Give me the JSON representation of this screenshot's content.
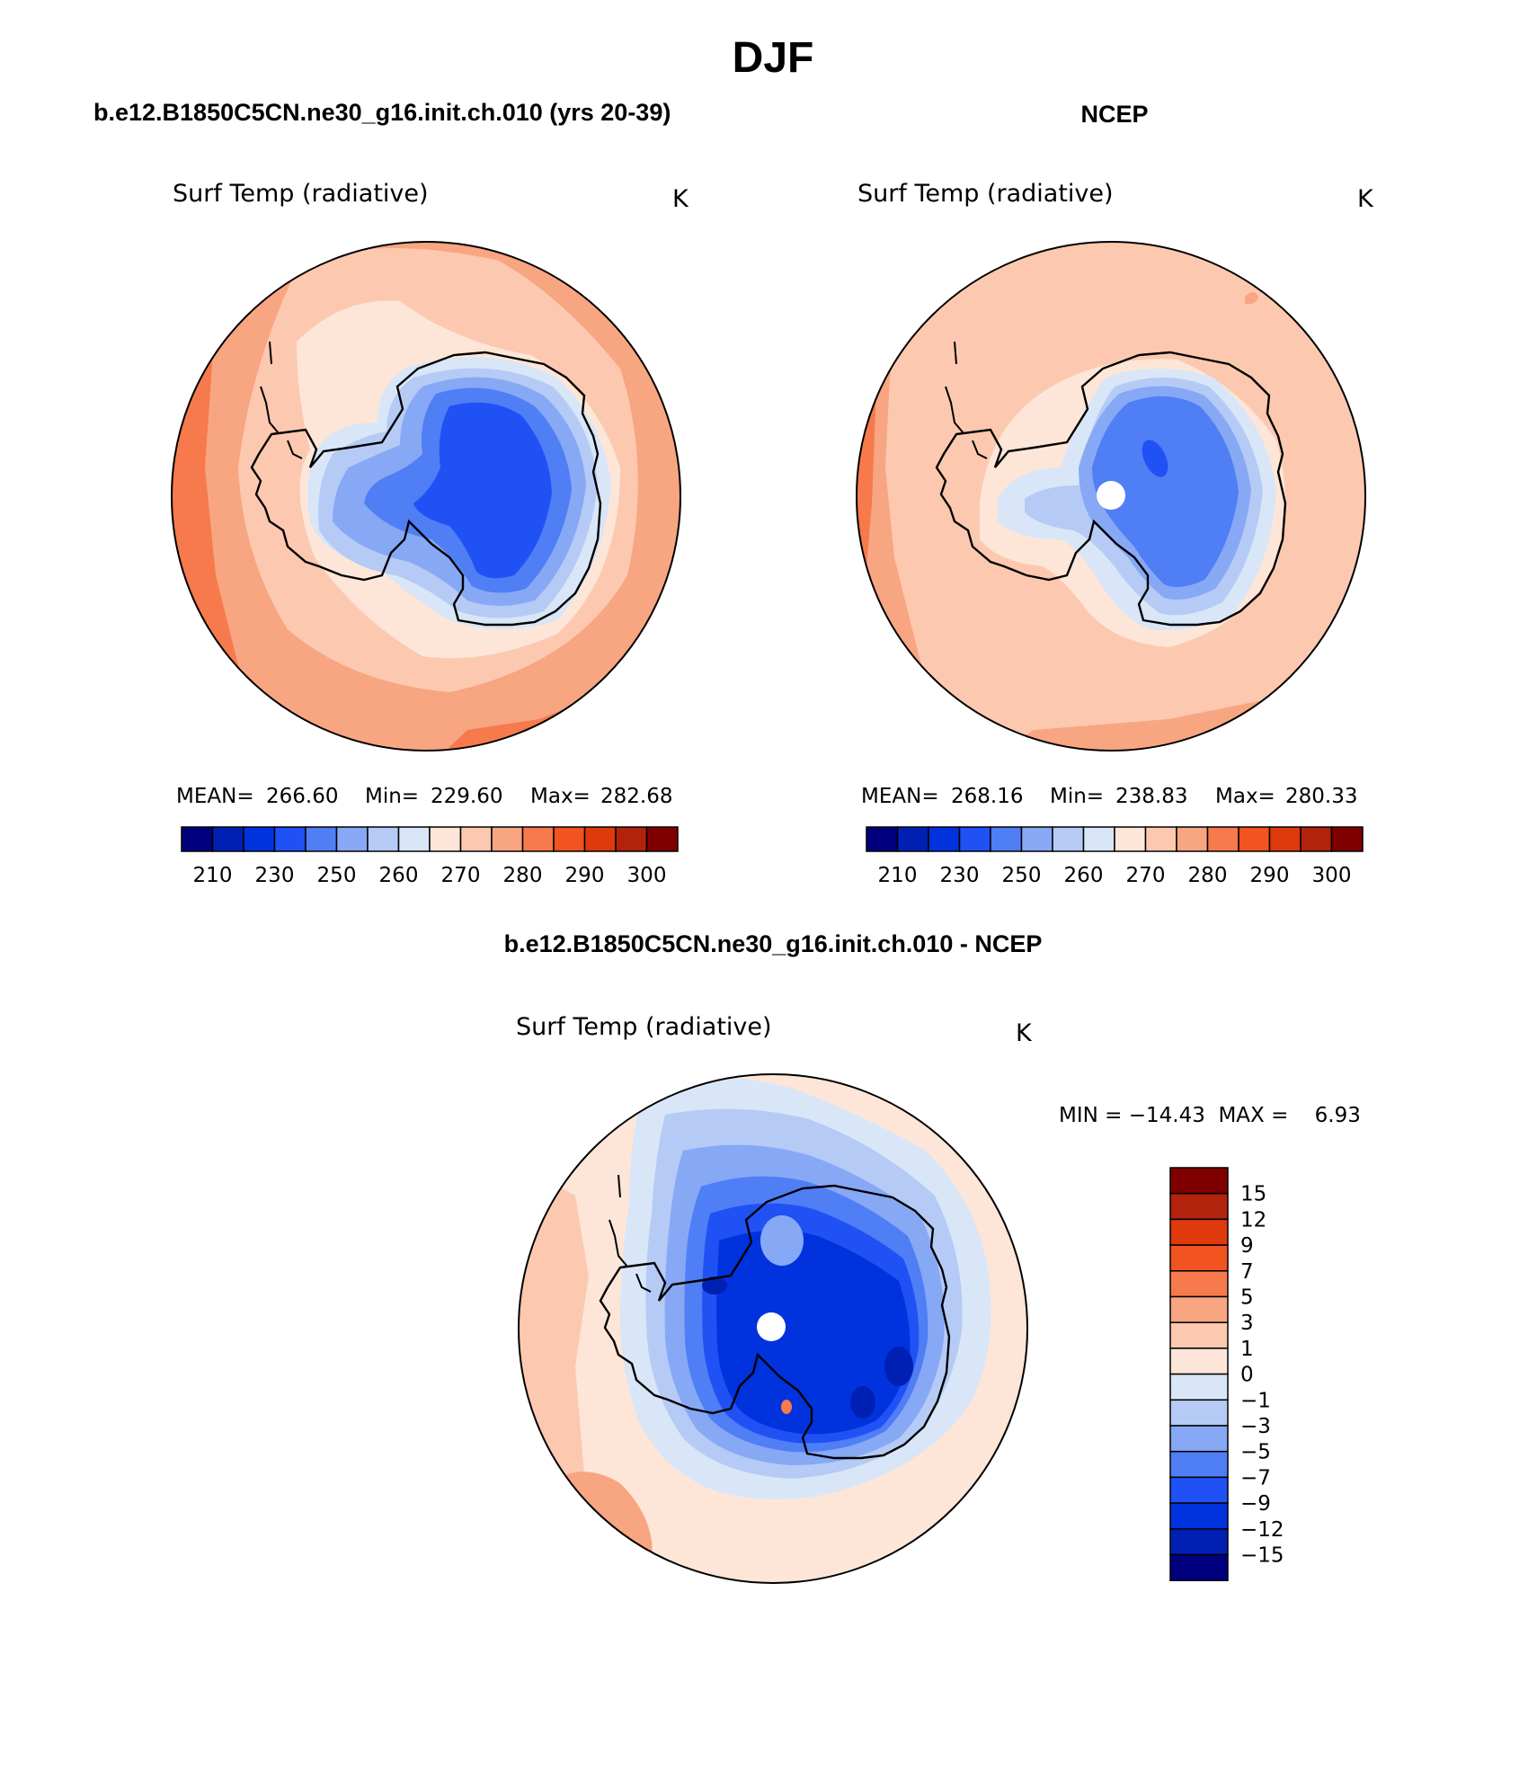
{
  "page_title": "DJF",
  "top_left": {
    "case_title": "b.e12.B1850C5CN.ne30_g16.init.ch.010 (yrs 20-39)",
    "var_label": "Surf Temp (radiative)",
    "units": "K",
    "stats": {
      "mean_label": "MEAN=",
      "mean": "266.60",
      "min_label": "Min=",
      "min": "229.60",
      "max_label": "Max=",
      "max": "282.68"
    }
  },
  "top_right": {
    "case_title": "NCEP",
    "var_label": "Surf Temp (radiative)",
    "units": "K",
    "stats": {
      "mean_label": "MEAN=",
      "mean": "268.16",
      "min_label": "Min=",
      "min": "238.83",
      "max_label": "Max=",
      "max": "280.33"
    }
  },
  "bottom": {
    "case_title": "b.e12.B1850C5CN.ne30_g16.init.ch.010 - NCEP",
    "var_label": "Surf Temp (radiative)",
    "units": "K",
    "minmax": "MIN = −14.43  MAX =    6.93"
  },
  "abs_colorbar": {
    "colors": [
      "#00007f",
      "#0020b3",
      "#0033dd",
      "#1f51f5",
      "#4f7ef5",
      "#87a8f5",
      "#b5cbf5",
      "#d8e6f7",
      "#fde6d8",
      "#fcc9b0",
      "#f8a582",
      "#f67a4c",
      "#f2531f",
      "#de3a0c",
      "#b3220c",
      "#7f0000"
    ],
    "labels": [
      "210",
      "230",
      "250",
      "260",
      "270",
      "280",
      "290",
      "300"
    ]
  },
  "diff_colorbar": {
    "colors_top_to_bottom": [
      "#7f0000",
      "#b3220c",
      "#de3a0c",
      "#f2531f",
      "#f67a4c",
      "#f8a582",
      "#fcc9b0",
      "#fde6d8",
      "#d8e6f7",
      "#b5cbf5",
      "#87a8f5",
      "#4f7ef5",
      "#1f51f5",
      "#0033dd",
      "#0020b3",
      "#00007f"
    ],
    "labels_top_to_bottom": [
      "15",
      "12",
      "9",
      "7",
      "5",
      "3",
      "1",
      "0",
      "−1",
      "−3",
      "−5",
      "−7",
      "−9",
      "−12",
      "−15"
    ]
  }
}
